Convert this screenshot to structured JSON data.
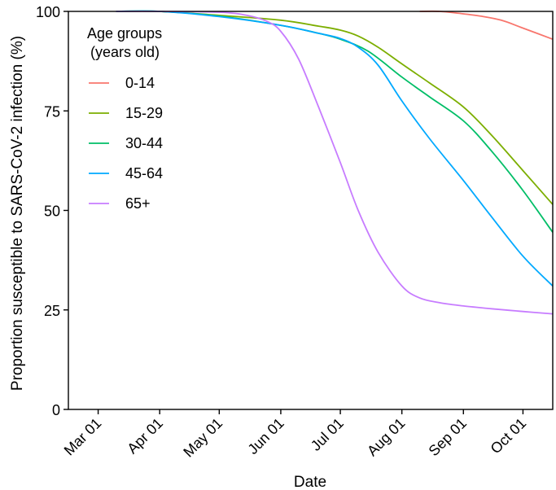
{
  "chart_data": {
    "type": "line",
    "title": "",
    "xlabel": "Date",
    "ylabel": "Proportion susceptible to SARS-CoV-2 infection (%)",
    "ylim": [
      0,
      100
    ],
    "xlim": [
      "2020-02-15",
      "2020-10-16"
    ],
    "yticks": [
      0,
      25,
      50,
      75,
      100
    ],
    "xticks": [
      {
        "date": "2020-03-01",
        "label": "Mar 01"
      },
      {
        "date": "2020-04-01",
        "label": "Apr 01"
      },
      {
        "date": "2020-05-01",
        "label": "May 01"
      },
      {
        "date": "2020-06-01",
        "label": "Jun 01"
      },
      {
        "date": "2020-07-01",
        "label": "Jul 01"
      },
      {
        "date": "2020-08-01",
        "label": "Aug 01"
      },
      {
        "date": "2020-09-01",
        "label": "Sep 01"
      },
      {
        "date": "2020-10-01",
        "label": "Oct 01"
      }
    ],
    "grid": false,
    "legend": {
      "title_line1": "Age groups",
      "title_line2": "(years old)",
      "placement": "top-left"
    },
    "series": [
      {
        "name": "0-14",
        "color": "#F8766D",
        "points": [
          [
            "2020-08-10",
            100
          ],
          [
            "2020-08-20",
            100
          ],
          [
            "2020-08-30",
            99.5
          ],
          [
            "2020-09-10",
            98.8
          ],
          [
            "2020-09-20",
            97.8
          ],
          [
            "2020-09-30",
            96.0
          ],
          [
            "2020-10-16",
            93.0
          ]
        ]
      },
      {
        "name": "15-29",
        "color": "#7CAE00",
        "points": [
          [
            "2020-03-10",
            100
          ],
          [
            "2020-04-01",
            100
          ],
          [
            "2020-05-01",
            99.0
          ],
          [
            "2020-06-01",
            97.8
          ],
          [
            "2020-06-20",
            96.3
          ],
          [
            "2020-07-01",
            95.3
          ],
          [
            "2020-07-10",
            93.8
          ],
          [
            "2020-07-20",
            91.0
          ],
          [
            "2020-08-01",
            86.8
          ],
          [
            "2020-08-15",
            82.0
          ],
          [
            "2020-09-01",
            76.0
          ],
          [
            "2020-09-15",
            69.0
          ],
          [
            "2020-10-01",
            60.0
          ],
          [
            "2020-10-16",
            51.5
          ]
        ]
      },
      {
        "name": "30-44",
        "color": "#00BE67",
        "points": [
          [
            "2020-03-10",
            100
          ],
          [
            "2020-04-01",
            100
          ],
          [
            "2020-05-01",
            98.8
          ],
          [
            "2020-06-01",
            96.5
          ],
          [
            "2020-06-20",
            94.5
          ],
          [
            "2020-07-01",
            93.0
          ],
          [
            "2020-07-15",
            90.0
          ],
          [
            "2020-08-01",
            83.5
          ],
          [
            "2020-08-15",
            78.5
          ],
          [
            "2020-09-01",
            72.5
          ],
          [
            "2020-09-15",
            65.0
          ],
          [
            "2020-10-01",
            55.0
          ],
          [
            "2020-10-16",
            44.5
          ]
        ]
      },
      {
        "name": "45-64",
        "color": "#00A9FF",
        "points": [
          [
            "2020-03-10",
            100
          ],
          [
            "2020-04-01",
            100
          ],
          [
            "2020-05-01",
            98.7
          ],
          [
            "2020-06-01",
            96.5
          ],
          [
            "2020-06-20",
            94.5
          ],
          [
            "2020-07-01",
            93.2
          ],
          [
            "2020-07-10",
            91.0
          ],
          [
            "2020-07-20",
            86.5
          ],
          [
            "2020-08-01",
            77.5
          ],
          [
            "2020-08-15",
            68.0
          ],
          [
            "2020-09-01",
            57.5
          ],
          [
            "2020-09-15",
            48.5
          ],
          [
            "2020-10-01",
            38.5
          ],
          [
            "2020-10-16",
            31.0
          ]
        ]
      },
      {
        "name": "65+",
        "color": "#C77CFF",
        "points": [
          [
            "2020-03-10",
            100
          ],
          [
            "2020-04-01",
            100
          ],
          [
            "2020-05-01",
            99.8
          ],
          [
            "2020-05-15",
            99.0
          ],
          [
            "2020-05-25",
            97.5
          ],
          [
            "2020-06-01",
            95.0
          ],
          [
            "2020-06-10",
            88.0
          ],
          [
            "2020-06-20",
            76.0
          ],
          [
            "2020-07-01",
            62.0
          ],
          [
            "2020-07-10",
            50.0
          ],
          [
            "2020-07-20",
            39.5
          ],
          [
            "2020-08-01",
            31.0
          ],
          [
            "2020-08-10",
            28.0
          ],
          [
            "2020-08-20",
            26.8
          ],
          [
            "2020-09-01",
            26.0
          ],
          [
            "2020-09-15",
            25.3
          ],
          [
            "2020-10-01",
            24.6
          ],
          [
            "2020-10-16",
            24.0
          ]
        ]
      }
    ]
  }
}
